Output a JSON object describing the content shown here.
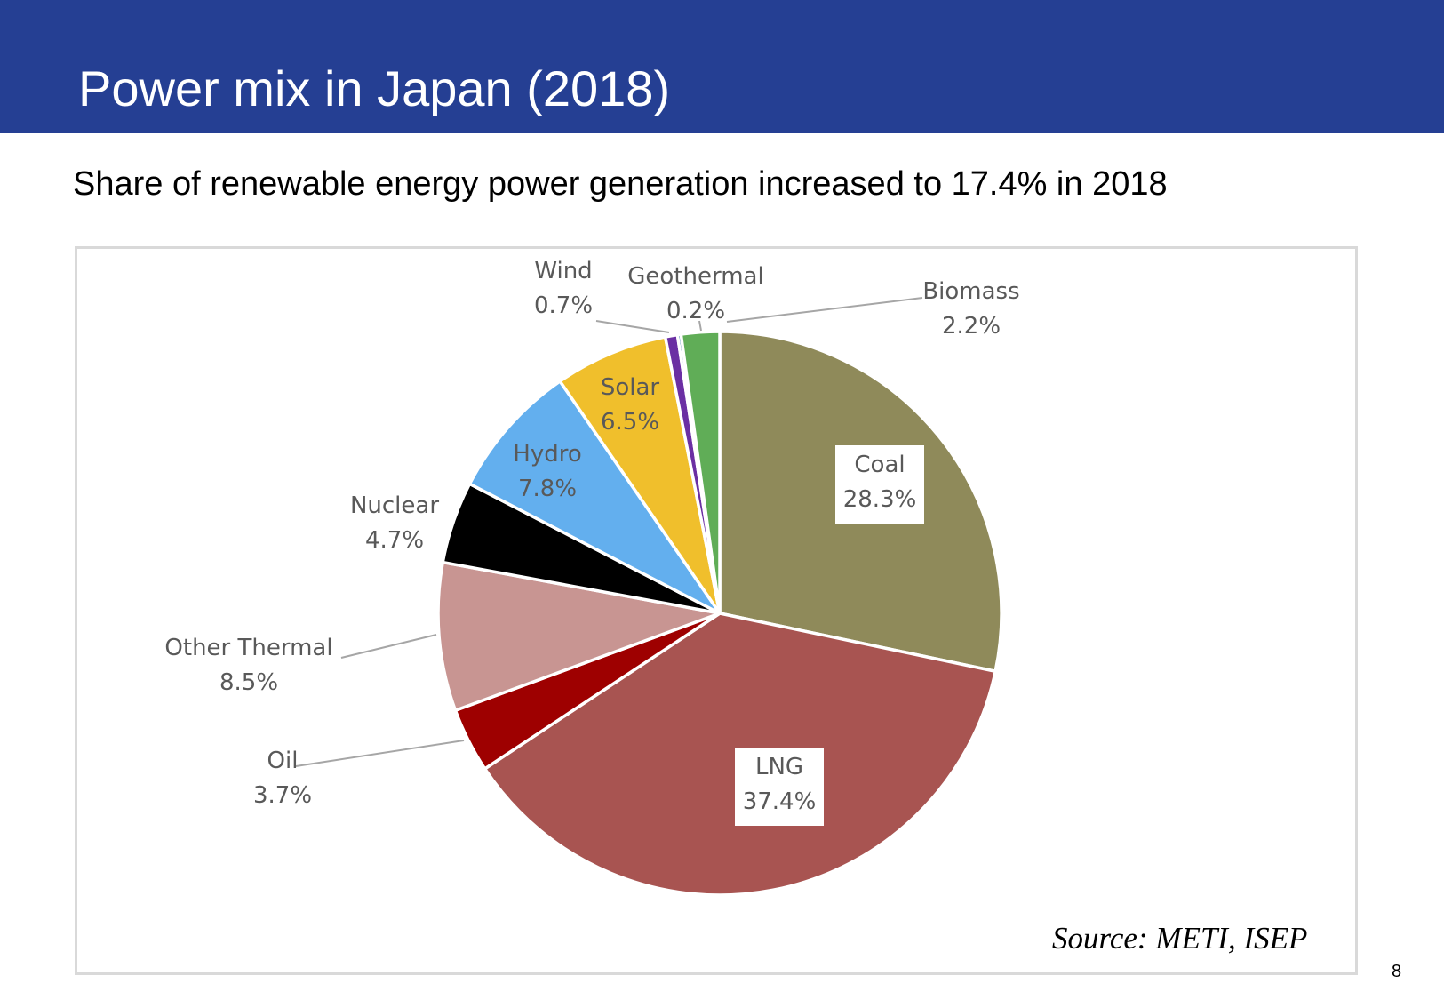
{
  "header": {
    "title": "Power mix in Japan (2018)",
    "subtitle": "Share of renewable energy power generation increased to 17.4% in 2018"
  },
  "chart_data": {
    "type": "pie",
    "title": "",
    "start": "12 o'clock",
    "direction": "clockwise",
    "slices": [
      {
        "name": "Coal",
        "value": 28.3,
        "label": "28.3%",
        "color": "#8f8a5a"
      },
      {
        "name": "LNG",
        "value": 37.4,
        "label": "37.4%",
        "color": "#a85451"
      },
      {
        "name": "Oil",
        "value": 3.7,
        "label": "3.7%",
        "color": "#9e0000"
      },
      {
        "name": "Other Thermal",
        "value": 8.5,
        "label": "8.5%",
        "color": "#c89592"
      },
      {
        "name": "Nuclear",
        "value": 4.7,
        "label": "4.7%",
        "color": "#000000"
      },
      {
        "name": "Hydro",
        "value": 7.8,
        "label": "7.8%",
        "color": "#63afee"
      },
      {
        "name": "Solar",
        "value": 6.5,
        "label": "6.5%",
        "color": "#f0bf2c"
      },
      {
        "name": "Wind",
        "value": 0.7,
        "label": "0.7%",
        "color": "#6b2fa3"
      },
      {
        "name": "Geothermal",
        "value": 0.2,
        "label": "0.2%",
        "color": "#2c6aa8"
      },
      {
        "name": "Biomass",
        "value": 2.2,
        "label": "2.2%",
        "color": "#60ad57"
      }
    ]
  },
  "footer": {
    "source": "Source: METI, ISEP",
    "page_number": "8"
  }
}
